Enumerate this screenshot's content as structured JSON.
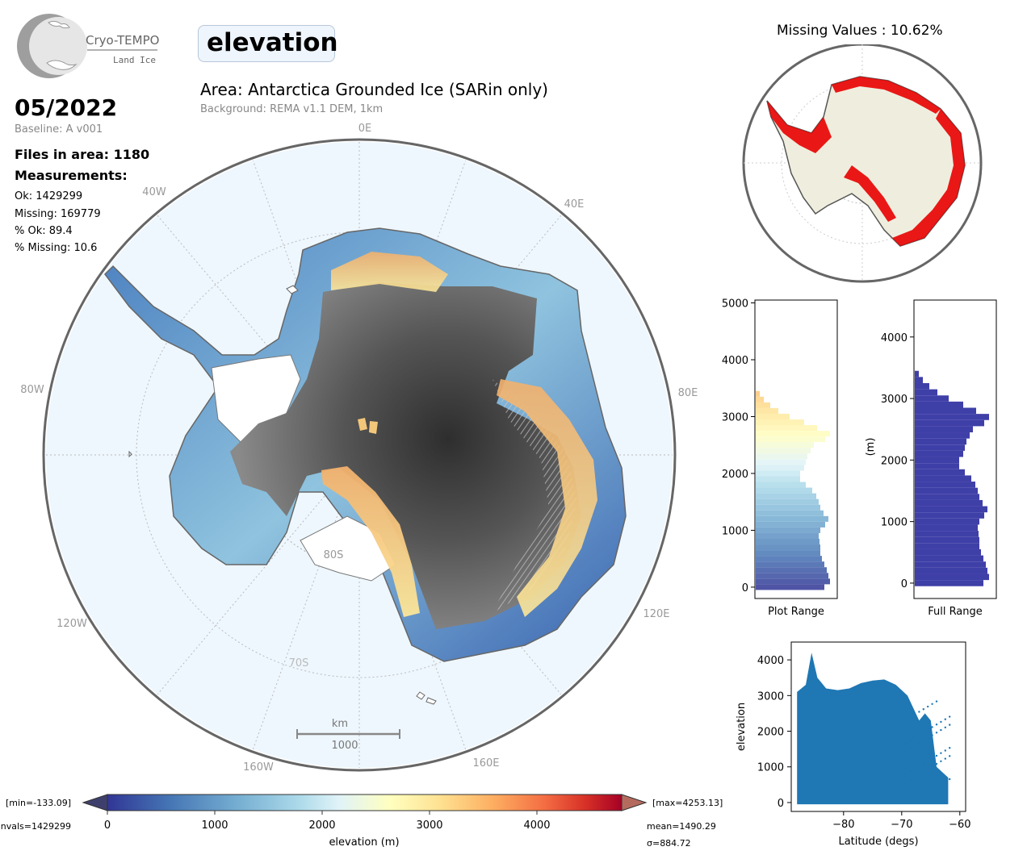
{
  "header": {
    "logo_name": "Cryo-TEMPO",
    "logo_sub": "Land Ice",
    "parameter": "elevation",
    "area_title": "Area: Antarctica Grounded Ice (SARin only)",
    "background_note": "Background: REMA v1.1 DEM, 1km"
  },
  "summary": {
    "date": "05/2022",
    "baseline": "Baseline: A v001",
    "files": "Files in area: 1180",
    "measurements_heading": "Measurements:",
    "ok": "Ok: 1429299",
    "missing": "Missing: 169779",
    "pct_ok": "% Ok: 89.4",
    "pct_missing": "% Missing: 10.6"
  },
  "map": {
    "lon_labels": [
      "0E",
      "40E",
      "80E",
      "120E",
      "160E",
      "160W",
      "120W",
      "80W",
      "40W"
    ],
    "lat_labels": [
      "80S",
      "70S"
    ],
    "scalebar_unit": "km",
    "scalebar_value": "1000"
  },
  "missing_panel": {
    "title": "Missing Values : 10.62%"
  },
  "colorbar": {
    "ticks": [
      "0",
      "1000",
      "2000",
      "3000",
      "4000"
    ],
    "label": "elevation (m)",
    "min_text": "[min=-133.09]",
    "max_text": "[max=4253.13]",
    "nvals_text": "nvals=1429299",
    "mean_text": "mean=1490.29",
    "sigma_text": "σ=884.72"
  },
  "chart_data": [
    {
      "type": "bar",
      "orientation": "horizontal",
      "title": "",
      "xlabel": "Plot Range",
      "ylabel": "",
      "ylim": [
        -200,
        5050
      ],
      "yticks": [
        0,
        1000,
        2000,
        3000,
        4000,
        5000
      ],
      "bin_centers": [
        0,
        100,
        200,
        300,
        400,
        500,
        600,
        700,
        800,
        900,
        1000,
        1100,
        1200,
        1300,
        1400,
        1500,
        1600,
        1700,
        1800,
        1900,
        2000,
        2100,
        2200,
        2300,
        2400,
        2500,
        2600,
        2700,
        2800,
        2900,
        3000,
        3100,
        3200,
        3300,
        3400
      ],
      "values": [
        0.85,
        0.92,
        0.9,
        0.88,
        0.85,
        0.82,
        0.8,
        0.8,
        0.79,
        0.78,
        0.8,
        0.86,
        0.9,
        0.84,
        0.8,
        0.78,
        0.75,
        0.7,
        0.62,
        0.55,
        0.55,
        0.6,
        0.62,
        0.64,
        0.68,
        0.72,
        0.86,
        0.92,
        0.76,
        0.6,
        0.42,
        0.28,
        0.18,
        0.1,
        0.05
      ]
    },
    {
      "type": "bar",
      "orientation": "horizontal",
      "title": "",
      "xlabel": "Full Range",
      "ylabel": "(m)",
      "ylim": [
        -250,
        4600
      ],
      "yticks": [
        0,
        1000,
        2000,
        3000,
        4000
      ],
      "bin_centers": [
        0,
        100,
        200,
        300,
        400,
        500,
        600,
        700,
        800,
        900,
        1000,
        1100,
        1200,
        1300,
        1400,
        1500,
        1600,
        1700,
        1800,
        1900,
        2000,
        2100,
        2200,
        2300,
        2400,
        2500,
        2600,
        2700,
        2800,
        2900,
        3000,
        3100,
        3200,
        3300,
        3400
      ],
      "values": [
        0.85,
        0.92,
        0.9,
        0.88,
        0.85,
        0.82,
        0.8,
        0.8,
        0.79,
        0.78,
        0.8,
        0.86,
        0.9,
        0.84,
        0.8,
        0.78,
        0.75,
        0.7,
        0.62,
        0.55,
        0.55,
        0.6,
        0.62,
        0.64,
        0.68,
        0.72,
        0.86,
        0.92,
        0.76,
        0.6,
        0.42,
        0.28,
        0.18,
        0.1,
        0.05
      ]
    },
    {
      "type": "scatter",
      "title": "",
      "xlabel": "Latitude (degs)",
      "ylabel": "elevation",
      "xlim": [
        -89,
        -59
      ],
      "ylim": [
        -250,
        4500
      ],
      "xticks": [
        -80,
        -70,
        -60
      ],
      "yticks": [
        0,
        1000,
        2000,
        3000,
        4000
      ],
      "upper_envelope": [
        [
          -88,
          3100
        ],
        [
          -86.5,
          3300
        ],
        [
          -85.5,
          4200
        ],
        [
          -84.5,
          3500
        ],
        [
          -83,
          3200
        ],
        [
          -81,
          3150
        ],
        [
          -79,
          3200
        ],
        [
          -77,
          3350
        ],
        [
          -75,
          3420
        ],
        [
          -73,
          3450
        ],
        [
          -71,
          3300
        ],
        [
          -69,
          3000
        ],
        [
          -67,
          2300
        ],
        [
          -66,
          2500
        ],
        [
          -65,
          2300
        ],
        [
          -64,
          1000
        ],
        [
          -62,
          700
        ]
      ],
      "lower_value": -50,
      "color": "#1f77b4"
    }
  ]
}
